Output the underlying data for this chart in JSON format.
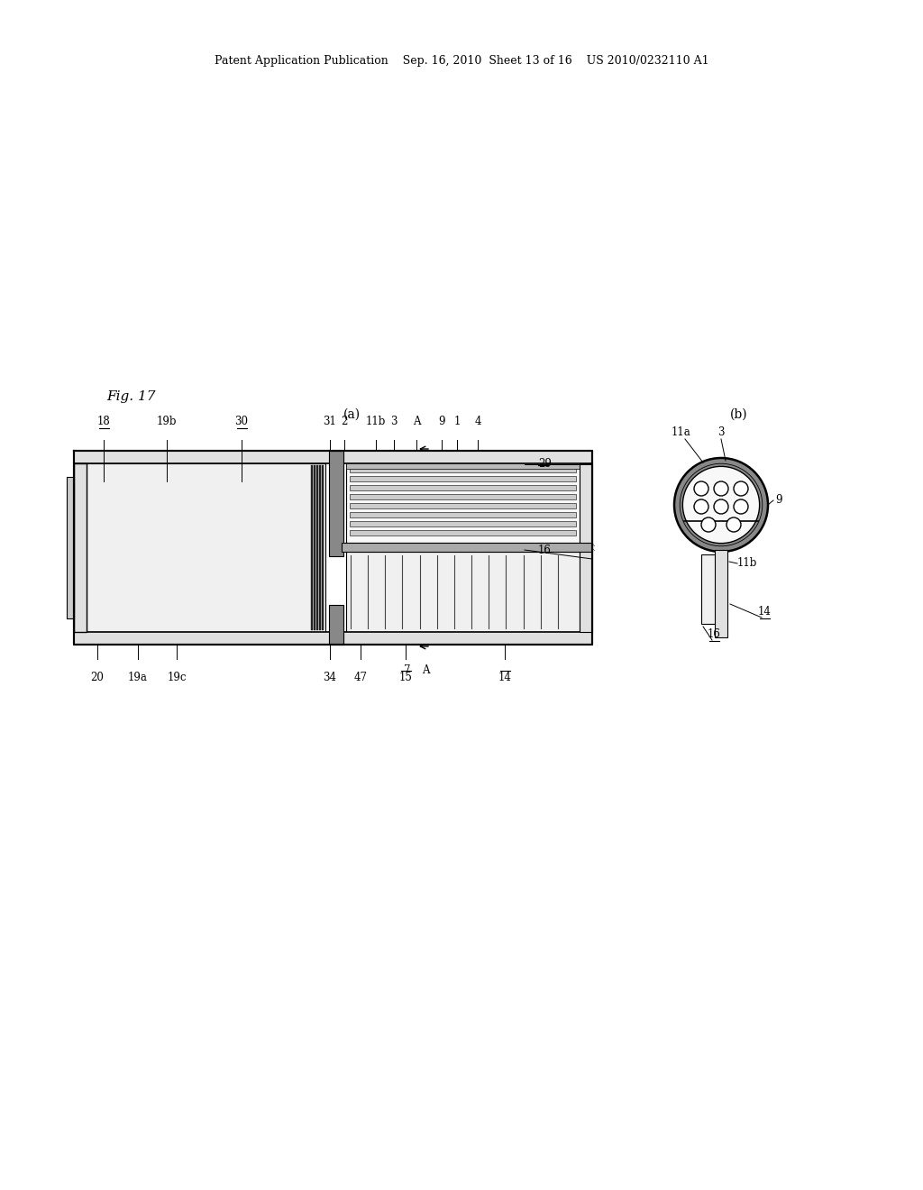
{
  "bg_color": "#ffffff",
  "line_color": "#000000",
  "header_text": "Patent Application Publication    Sep. 16, 2010  Sheet 13 of 16    US 2010/0232110 A1",
  "fig_label": "Fig. 17",
  "sub_a": "(a)",
  "sub_b": "(b)"
}
